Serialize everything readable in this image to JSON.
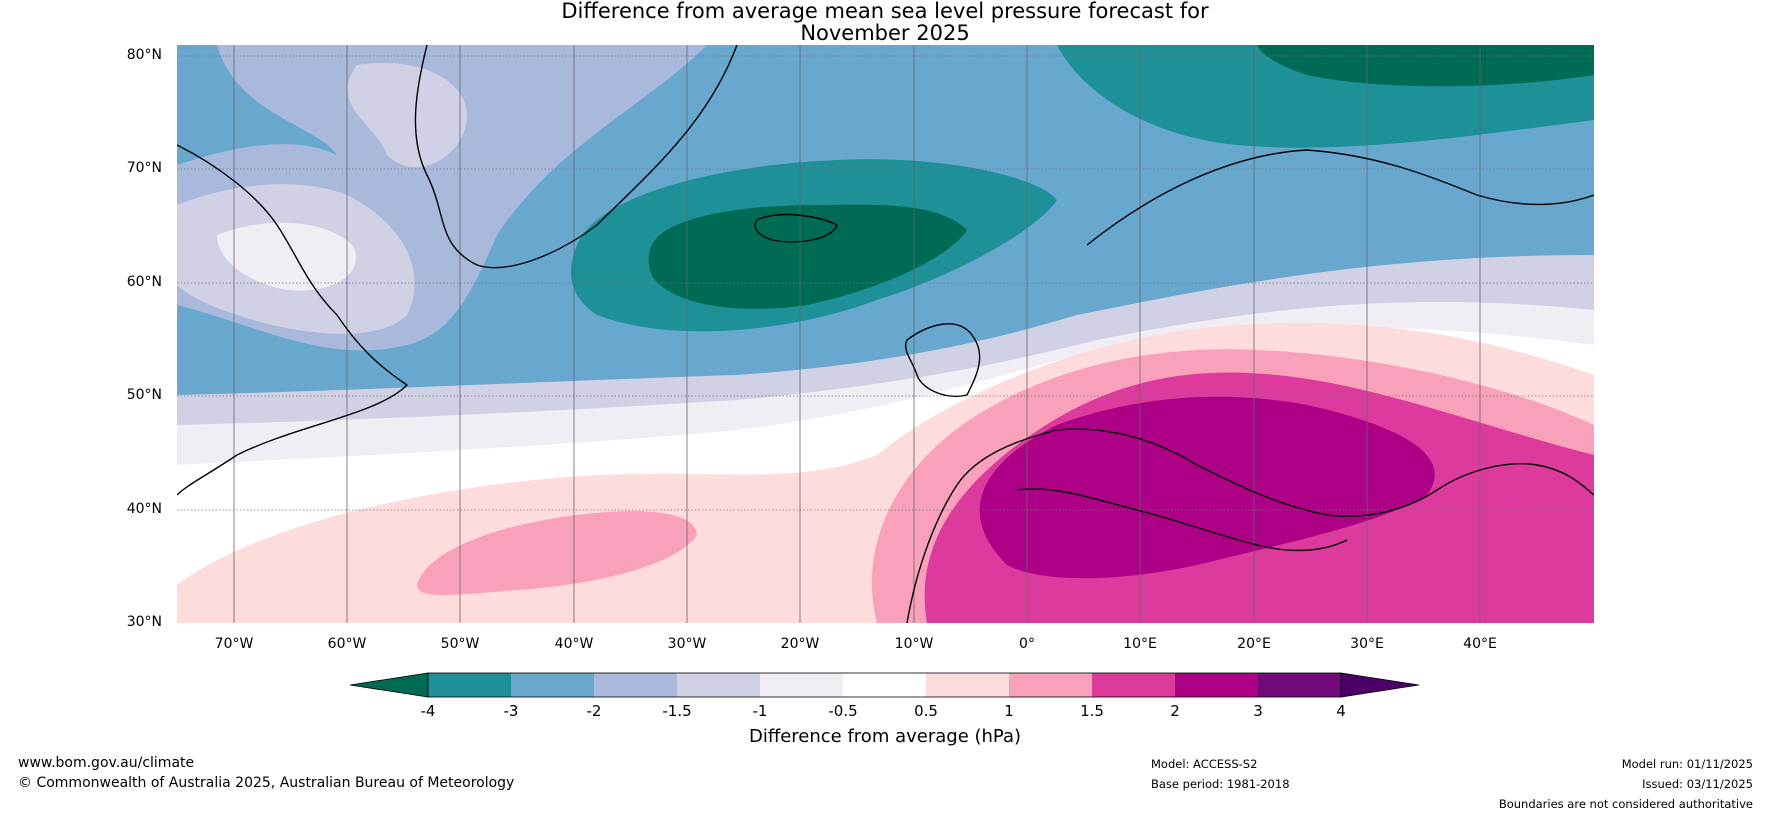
{
  "title": {
    "line1": "Difference from average mean sea level pressure forecast for",
    "line2": "November 2025"
  },
  "map": {
    "lat_labels": [
      "80°N",
      "70°N",
      "60°N",
      "50°N",
      "40°N",
      "30°N"
    ],
    "lat_values": [
      80,
      70,
      60,
      50,
      40,
      30
    ],
    "lon_labels": [
      "70°W",
      "60°W",
      "50°W",
      "40°W",
      "30°W",
      "20°W",
      "10°W",
      "0°",
      "10°E",
      "20°E",
      "30°E",
      "40°E"
    ],
    "lon_values": [
      -70,
      -60,
      -50,
      -40,
      -30,
      -20,
      -10,
      0,
      10,
      20,
      30,
      40
    ],
    "extent": {
      "lon_min": -75,
      "lon_max": 50,
      "lat_min": 30,
      "lat_max": 81
    }
  },
  "colorbar": {
    "title": "Difference from average (hPa)",
    "labels": [
      "-4",
      "-3",
      "-2",
      "-1.5",
      "-1",
      "-0.5",
      "0.5",
      "1",
      "1.5",
      "2",
      "3",
      "4"
    ],
    "colors": [
      "#006b55",
      "#1d9098",
      "#68a8cf",
      "#a8b9dc",
      "#d1d1e5",
      "#f1edf4",
      "#ffffff",
      "#fedcdc",
      "#f9a1bb",
      "#dc3a9d",
      "#ad0086",
      "#720a7c",
      "#4a0068"
    ]
  },
  "footer": {
    "website": "www.bom.gov.au/climate",
    "copyright": "© Commonwealth of Australia 2025, Australian Bureau of Meteorology",
    "model": "Model: ACCESS-S2",
    "base_period": "Base period: 1981-2018",
    "model_run": "Model run: 01/11/2025",
    "issued": "Issued: 03/11/2025",
    "disclaimer": "Boundaries are not considered authoritative"
  }
}
